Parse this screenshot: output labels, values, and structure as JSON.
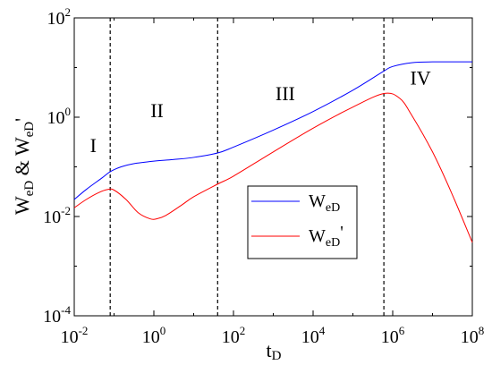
{
  "chart_data": {
    "type": "line",
    "title": "",
    "xlabel": "t",
    "xlabel_sub": "D",
    "ylabel_parts": [
      {
        "t": "W",
        "sub": false
      },
      {
        "t": "eD",
        "sub": true
      },
      {
        "t": " & W",
        "sub": false
      },
      {
        "t": "eD",
        "sub": true
      },
      {
        "t": "'",
        "sub": false
      }
    ],
    "x_scale": "log",
    "y_scale": "log",
    "xlim": [
      0.01,
      100000000
    ],
    "ylim": [
      0.0001,
      100
    ],
    "x_ticks": [
      {
        "value": 0.01,
        "base": "10",
        "exp": "-2"
      },
      {
        "value": 1,
        "base": "10",
        "exp": "0"
      },
      {
        "value": 100,
        "base": "10",
        "exp": "2"
      },
      {
        "value": 10000,
        "base": "10",
        "exp": "4"
      },
      {
        "value": 1000000,
        "base": "10",
        "exp": "6"
      },
      {
        "value": 100000000,
        "base": "10",
        "exp": "8"
      }
    ],
    "y_ticks": [
      {
        "value": 0.0001,
        "base": "10",
        "exp": "-4"
      },
      {
        "value": 0.01,
        "base": "10",
        "exp": "-2"
      },
      {
        "value": 1,
        "base": "10",
        "exp": "0"
      },
      {
        "value": 100,
        "base": "10",
        "exp": "2"
      }
    ],
    "grid": false,
    "legend_position": "lower-center",
    "vertical_lines_x": [
      0.08,
      40,
      600000
    ],
    "regions": [
      {
        "label": "I",
        "x": 0.03,
        "y": 0.2
      },
      {
        "label": "II",
        "x": 1.2,
        "y": 1.0
      },
      {
        "label": "III",
        "x": 2000,
        "y": 2.2
      },
      {
        "label": "IV",
        "x": 5000000,
        "y": 4.5
      }
    ],
    "series": [
      {
        "legend_main": "W",
        "legend_sub": "eD",
        "legend_suffix": "",
        "color": "#0000ff",
        "x": [
          0.01,
          0.02,
          0.05,
          0.08,
          0.15,
          0.3,
          1,
          3,
          10,
          40,
          100,
          1000,
          10000,
          100000,
          600000,
          1000000,
          3000000,
          10000000,
          100000000
        ],
        "y": [
          0.022,
          0.035,
          0.06,
          0.08,
          0.1,
          0.115,
          0.13,
          0.14,
          0.155,
          0.19,
          0.25,
          0.55,
          1.3,
          3.5,
          8.5,
          10.5,
          12.5,
          13,
          13
        ]
      },
      {
        "legend_main": "W",
        "legend_sub": "eD",
        "legend_suffix": "'",
        "color": "#ff0000",
        "x": [
          0.01,
          0.02,
          0.04,
          0.07,
          0.1,
          0.2,
          0.4,
          0.8,
          1.2,
          2,
          5,
          10,
          40,
          100,
          1000,
          10000,
          100000,
          600000,
          1500000,
          3000000,
          10000000,
          30000000,
          100000000
        ],
        "y": [
          0.015,
          0.022,
          0.03,
          0.035,
          0.034,
          0.022,
          0.012,
          0.009,
          0.009,
          0.0105,
          0.017,
          0.025,
          0.045,
          0.065,
          0.2,
          0.6,
          1.6,
          3.0,
          2.4,
          1.1,
          0.2,
          0.03,
          0.003
        ]
      }
    ]
  }
}
